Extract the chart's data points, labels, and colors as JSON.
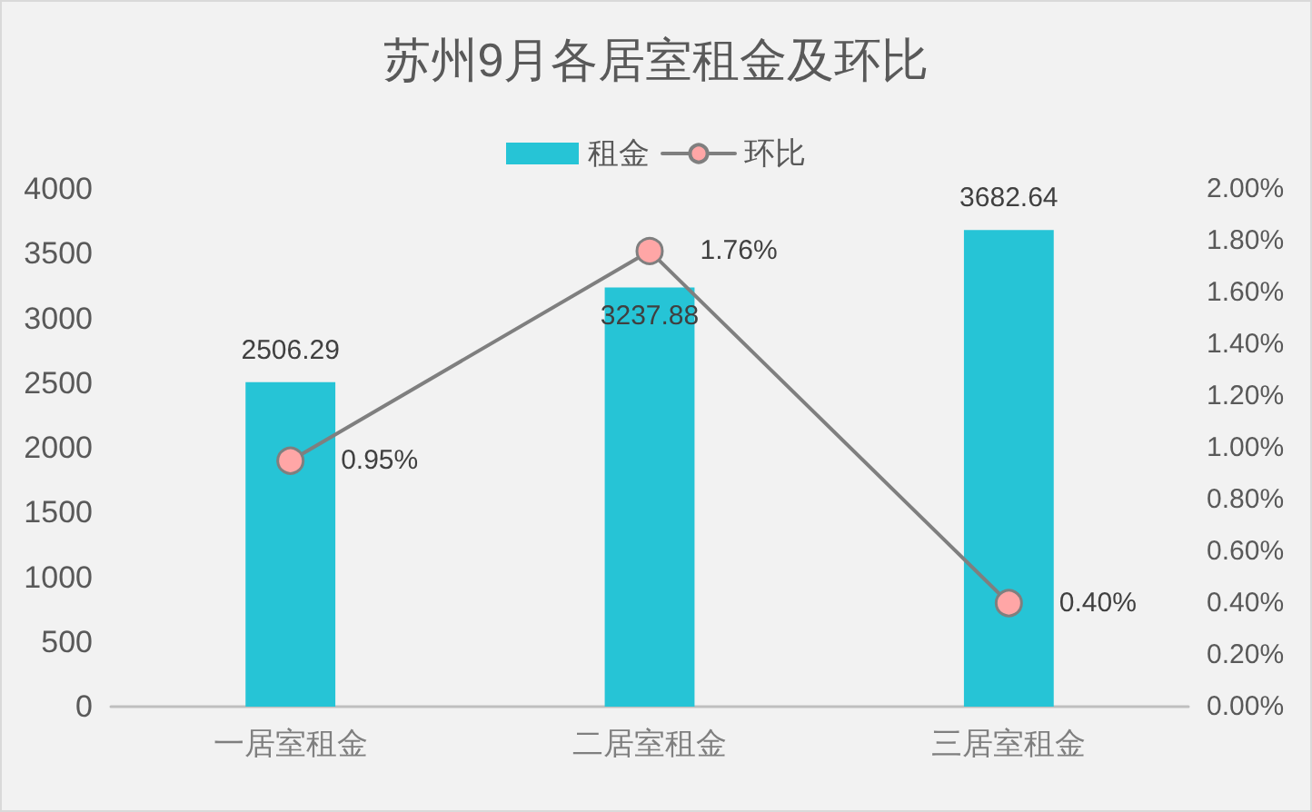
{
  "chart_data": {
    "type": "bar",
    "title": "苏州9月各居室租金及环比",
    "categories": [
      "一居室租金",
      "二居室租金",
      "三居室租金"
    ],
    "series": [
      {
        "name": "租金",
        "type": "bar",
        "color": "#26c4d6",
        "values": [
          2506.29,
          3237.88,
          3682.64
        ],
        "value_labels": [
          "2506.29",
          "3237.88",
          "3682.64"
        ]
      },
      {
        "name": "环比",
        "type": "line",
        "axis": "y2",
        "color": "#7f7f7f",
        "colors": [
          "#ffa6a6",
          "#ffa6a6",
          "#ffa6a6"
        ],
        "values": [
          0.95,
          1.76,
          0.4
        ],
        "value_labels": [
          "0.95%",
          "1.76%",
          "0.40%"
        ]
      }
    ],
    "ylim": [
      0,
      4000
    ],
    "yticks": [
      0,
      500,
      1000,
      1500,
      2000,
      2500,
      3000,
      3500,
      4000
    ],
    "y2lim": [
      0,
      2
    ],
    "y2ticks": [
      {
        "value": 0,
        "label": "0.00%"
      },
      {
        "value": 0.2,
        "label": "0.20%"
      },
      {
        "value": 0.4,
        "label": "0.40%"
      },
      {
        "value": 0.6,
        "label": "0.60%"
      },
      {
        "value": 0.8,
        "label": "0.80%"
      },
      {
        "value": 1,
        "label": "1.00%"
      },
      {
        "value": 1.2,
        "label": "1.20%"
      },
      {
        "value": 1.4,
        "label": "1.40%"
      },
      {
        "value": 1.6,
        "label": "1.60%"
      },
      {
        "value": 1.8,
        "label": "1.80%"
      },
      {
        "value": 2,
        "label": "2.00%"
      }
    ],
    "legend": "top",
    "grid": false,
    "marker": "circle",
    "line_style": "solid"
  }
}
